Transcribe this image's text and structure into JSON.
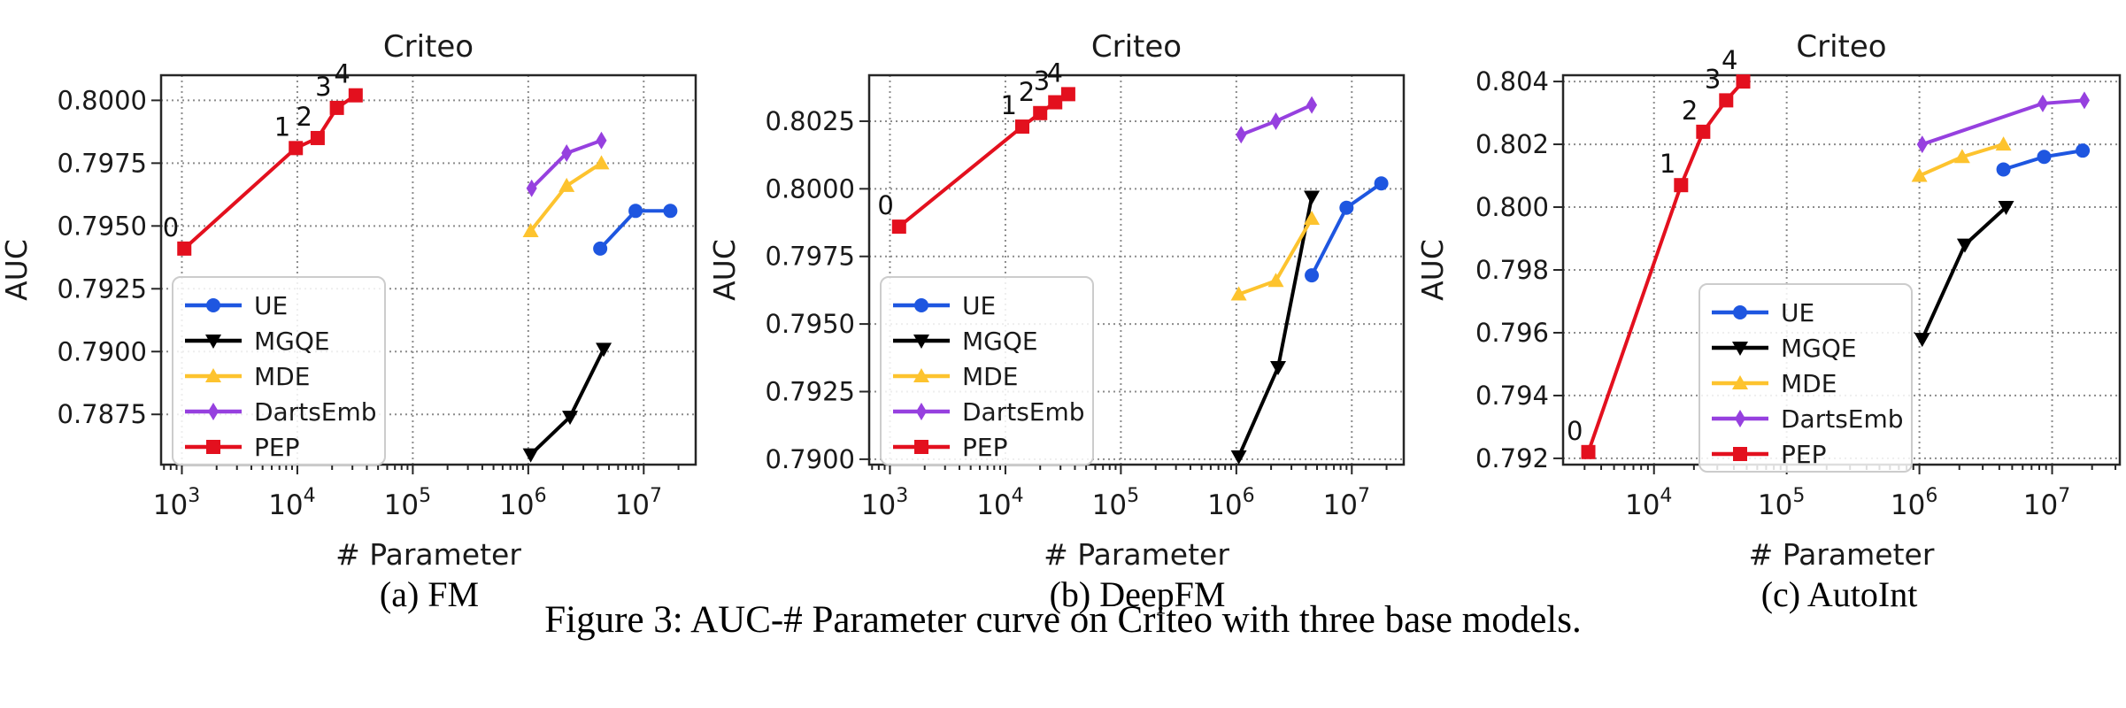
{
  "figure": {
    "caption": "Figure 3: AUC-# Parameter curve on Criteo with three base models.",
    "legend_labels": [
      "UE",
      "MGQE",
      "MDE",
      "DartsEmb",
      "PEP"
    ],
    "colors": {
      "UE": "#1E56E0",
      "MGQE": "#000000",
      "MDE": "#FDC32E",
      "DartsEmb": "#9640DF",
      "PEP": "#E3101E",
      "grid": "#8c8c8c",
      "spine": "#262626",
      "text": "#1a1a1a"
    }
  },
  "chart_data": [
    {
      "type": "line",
      "title": "Criteo",
      "caption": "(a) FM",
      "xlabel": "# Parameter",
      "ylabel": "AUC",
      "xscale": "log10",
      "grid": "dotted",
      "legend_position": "lower-left",
      "xlim_log10": [
        2.82,
        7.45
      ],
      "ylim": [
        0.7855,
        0.801
      ],
      "xticks_exponents": [
        3,
        4,
        5,
        6,
        7
      ],
      "yticks": [
        0.7875,
        0.79,
        0.7925,
        0.795,
        0.7975,
        0.8
      ],
      "ytick_decimals": 4,
      "series": [
        {
          "name": "UE",
          "marker": "circle",
          "color": "#1E56E0",
          "points": [
            [
              4200000,
              0.7941
            ],
            [
              8500000,
              0.7956
            ],
            [
              17000000,
              0.7956
            ]
          ]
        },
        {
          "name": "MGQE",
          "marker": "triangle-down",
          "color": "#000000",
          "points": [
            [
              1050000,
              0.7859
            ],
            [
              2300000,
              0.7874
            ],
            [
              4500000,
              0.7901
            ]
          ]
        },
        {
          "name": "MDE",
          "marker": "triangle-up",
          "color": "#FDC32E",
          "points": [
            [
              1050000,
              0.7948
            ],
            [
              2150000,
              0.7966
            ],
            [
              4300000,
              0.7975
            ]
          ]
        },
        {
          "name": "DartsEmb",
          "marker": "diamond",
          "color": "#9640DF",
          "points": [
            [
              1070000,
              0.7965
            ],
            [
              2150000,
              0.7979
            ],
            [
              4300000,
              0.7984
            ]
          ]
        },
        {
          "name": "PEP",
          "marker": "square",
          "color": "#E3101E",
          "points": [
            [
              1050,
              0.7941
            ],
            [
              9700,
              0.7981
            ],
            [
              15000,
              0.7985
            ],
            [
              22000,
              0.7997
            ],
            [
              32000,
              0.8002
            ]
          ],
          "point_labels": [
            "0",
            "1",
            "2",
            "3",
            "4"
          ]
        }
      ]
    },
    {
      "type": "line",
      "title": "Criteo",
      "caption": "(b) DeepFM",
      "xlabel": "# Parameter",
      "ylabel": "AUC",
      "xscale": "log10",
      "grid": "dotted",
      "legend_position": "lower-left",
      "xlim_log10": [
        2.82,
        7.45
      ],
      "ylim": [
        0.7898,
        0.8042
      ],
      "xticks_exponents": [
        3,
        4,
        5,
        6,
        7
      ],
      "yticks": [
        0.79,
        0.7925,
        0.795,
        0.7975,
        0.8,
        0.8025
      ],
      "ytick_decimals": 4,
      "series": [
        {
          "name": "UE",
          "marker": "circle",
          "color": "#1E56E0",
          "points": [
            [
              4500000,
              0.7968
            ],
            [
              9000000,
              0.7993
            ],
            [
              18000000,
              0.8002
            ]
          ]
        },
        {
          "name": "MGQE",
          "marker": "triangle-down",
          "color": "#000000",
          "points": [
            [
              1050000,
              0.7901
            ],
            [
              2300000,
              0.7934
            ],
            [
              4500000,
              0.7997
            ]
          ]
        },
        {
          "name": "MDE",
          "marker": "triangle-up",
          "color": "#FDC32E",
          "points": [
            [
              1050000,
              0.7961
            ],
            [
              2200000,
              0.7966
            ],
            [
              4500000,
              0.7989
            ]
          ]
        },
        {
          "name": "DartsEmb",
          "marker": "diamond",
          "color": "#9640DF",
          "points": [
            [
              1100000,
              0.802
            ],
            [
              2200000,
              0.8025
            ],
            [
              4500000,
              0.8031
            ]
          ]
        },
        {
          "name": "PEP",
          "marker": "square",
          "color": "#E3101E",
          "points": [
            [
              1200,
              0.7986
            ],
            [
              14000,
              0.8023
            ],
            [
              20000,
              0.8028
            ],
            [
              27000,
              0.8032
            ],
            [
              35000,
              0.8035
            ]
          ],
          "point_labels": [
            "0",
            "1",
            "2",
            "3",
            "4"
          ]
        }
      ]
    },
    {
      "type": "line",
      "title": "Criteo",
      "caption": "(c) AutoInt",
      "xlabel": "# Parameter",
      "ylabel": "AUC",
      "xscale": "log10",
      "grid": "dotted",
      "legend_position": "lower-center",
      "xlim_log10": [
        3.315,
        7.51
      ],
      "ylim": [
        0.7918,
        0.8042
      ],
      "xticks_exponents": [
        4,
        5,
        6,
        7
      ],
      "yticks": [
        0.792,
        0.794,
        0.796,
        0.798,
        0.8,
        0.802,
        0.804
      ],
      "ytick_decimals": 3,
      "series": [
        {
          "name": "UE",
          "marker": "circle",
          "color": "#1E56E0",
          "points": [
            [
              4300000,
              0.8012
            ],
            [
              8700000,
              0.8016
            ],
            [
              17000000,
              0.8018
            ]
          ]
        },
        {
          "name": "MGQE",
          "marker": "triangle-down",
          "color": "#000000",
          "points": [
            [
              1050000,
              0.7958
            ],
            [
              2200000,
              0.7988
            ],
            [
              4500000,
              0.8
            ]
          ]
        },
        {
          "name": "MDE",
          "marker": "triangle-up",
          "color": "#FDC32E",
          "points": [
            [
              1000000,
              0.801
            ],
            [
              2100000,
              0.8016
            ],
            [
              4300000,
              0.802
            ]
          ]
        },
        {
          "name": "DartsEmb",
          "marker": "diamond",
          "color": "#9640DF",
          "points": [
            [
              1050000,
              0.802
            ],
            [
              8500000,
              0.8033
            ],
            [
              17500000,
              0.8034
            ]
          ]
        },
        {
          "name": "PEP",
          "marker": "square",
          "color": "#E3101E",
          "points": [
            [
              3200,
              0.7922
            ],
            [
              16000,
              0.8007
            ],
            [
              23500,
              0.8024
            ],
            [
              35000,
              0.8034
            ],
            [
              47000,
              0.804
            ]
          ],
          "point_labels": [
            "0",
            "1",
            "2",
            "3",
            "4"
          ]
        }
      ]
    }
  ]
}
